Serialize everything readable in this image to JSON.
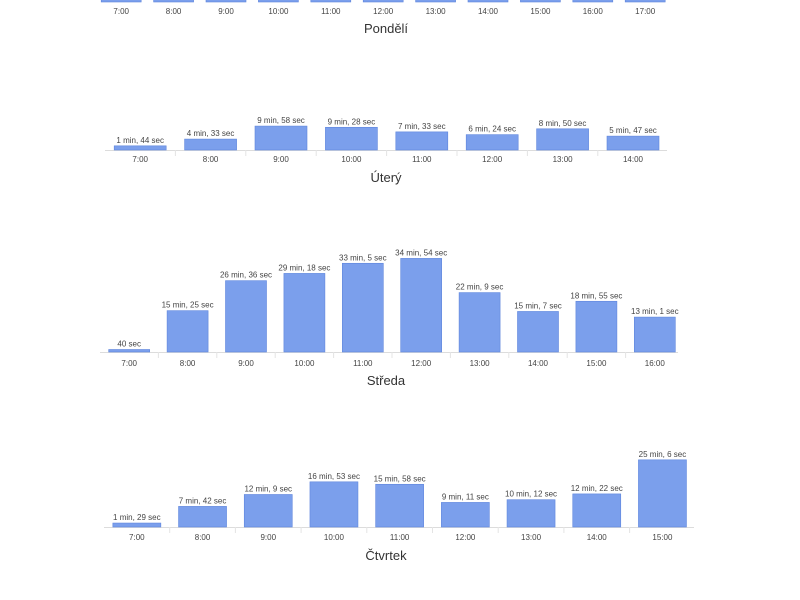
{
  "colors": {
    "bar": "#7b9fec",
    "bar_stroke": "#5f86dd",
    "text": "#444444"
  },
  "chart_data": [
    {
      "type": "bar",
      "title": "Pondělí",
      "categories": [
        "7:00",
        "8:00",
        "9:00",
        "10:00",
        "11:00",
        "12:00",
        "13:00",
        "14:00",
        "15:00",
        "16:00",
        "17:00"
      ],
      "values": [
        null,
        null,
        null,
        null,
        null,
        null,
        null,
        null,
        null,
        null,
        null
      ],
      "labels": [
        "",
        "",
        "",
        "",
        "",
        "",
        "",
        "",
        "",
        "",
        ""
      ],
      "partially_visible": true
    },
    {
      "type": "bar",
      "title": "Úterý",
      "categories": [
        "7:00",
        "8:00",
        "9:00",
        "10:00",
        "11:00",
        "12:00",
        "13:00",
        "14:00"
      ],
      "values": [
        104,
        273,
        598,
        568,
        453,
        384,
        530,
        347
      ],
      "labels": [
        "1 min, 44 sec",
        "4 min, 33 sec",
        "9 min, 58 sec",
        "9 min, 28 sec",
        "7 min, 33 sec",
        "6 min, 24 sec",
        "8 min, 50 sec",
        "5 min, 47 sec"
      ],
      "unit": "seconds"
    },
    {
      "type": "bar",
      "title": "Středa",
      "categories": [
        "7:00",
        "8:00",
        "9:00",
        "10:00",
        "11:00",
        "12:00",
        "13:00",
        "14:00",
        "15:00",
        "16:00"
      ],
      "values": [
        40,
        925,
        1596,
        1758,
        1985,
        2094,
        1329,
        907,
        1135,
        781
      ],
      "labels": [
        "40 sec",
        "15 min, 25 sec",
        "26 min, 36 sec",
        "29 min, 18 sec",
        "33 min, 5 sec",
        "34 min, 54 sec",
        "22 min, 9 sec",
        "15 min, 7 sec",
        "18 min, 55 sec",
        "13 min, 1 sec"
      ],
      "unit": "seconds"
    },
    {
      "type": "bar",
      "title": "Čtvrtek",
      "categories": [
        "7:00",
        "8:00",
        "9:00",
        "10:00",
        "11:00",
        "12:00",
        "13:00",
        "14:00",
        "15:00"
      ],
      "values": [
        89,
        462,
        729,
        1013,
        958,
        551,
        612,
        742,
        1506
      ],
      "labels": [
        "1 min, 29 sec",
        "7 min, 42 sec",
        "12 min, 9 sec",
        "16 min, 53 sec",
        "15 min, 58 sec",
        "9 min, 11 sec",
        "10 min, 12 sec",
        "12 min, 22 sec",
        "25 min, 6 sec"
      ],
      "unit": "seconds"
    }
  ]
}
